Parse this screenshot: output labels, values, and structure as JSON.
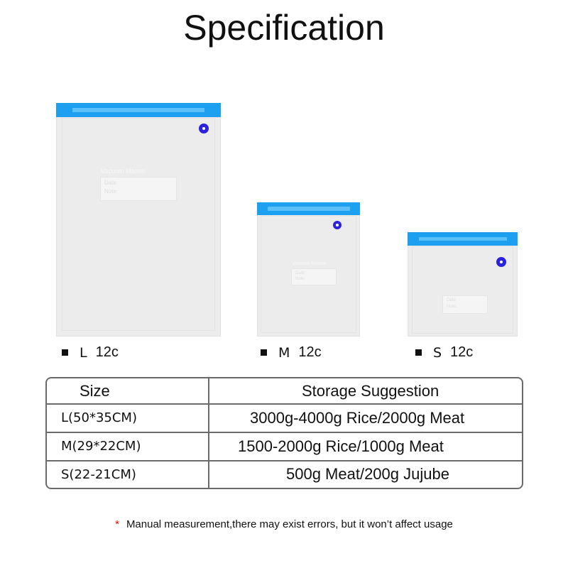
{
  "title": "Specification",
  "bags": [
    {
      "size": "L",
      "count": "12c",
      "brand": "Vacuum Master",
      "fields": [
        "Date:",
        "Note:"
      ]
    },
    {
      "size": "M",
      "count": "12c",
      "brand": "Vacuum Master",
      "fields": [
        "Date:",
        "Note:"
      ]
    },
    {
      "size": "S",
      "count": "12c",
      "fields": [
        "Date:",
        "Note:"
      ]
    }
  ],
  "colors": {
    "zipper": "#1ea0f0",
    "valve": "#2a22e0",
    "note_star": "#e00000"
  },
  "table": {
    "headers": [
      "Size",
      "Storage Suggestion"
    ],
    "rows": [
      [
        "L(50*35CM)",
        "3000g-4000g Rice/2000g Meat"
      ],
      [
        "M(29*22CM)",
        "1500-2000g Rice/1000g Meat"
      ],
      [
        "S(22-21CM)",
        "500g Meat/200g Jujube"
      ]
    ]
  },
  "note": {
    "star": "*",
    "text": "Manual measurement,there may exist errors, but it won’t affect usage"
  }
}
